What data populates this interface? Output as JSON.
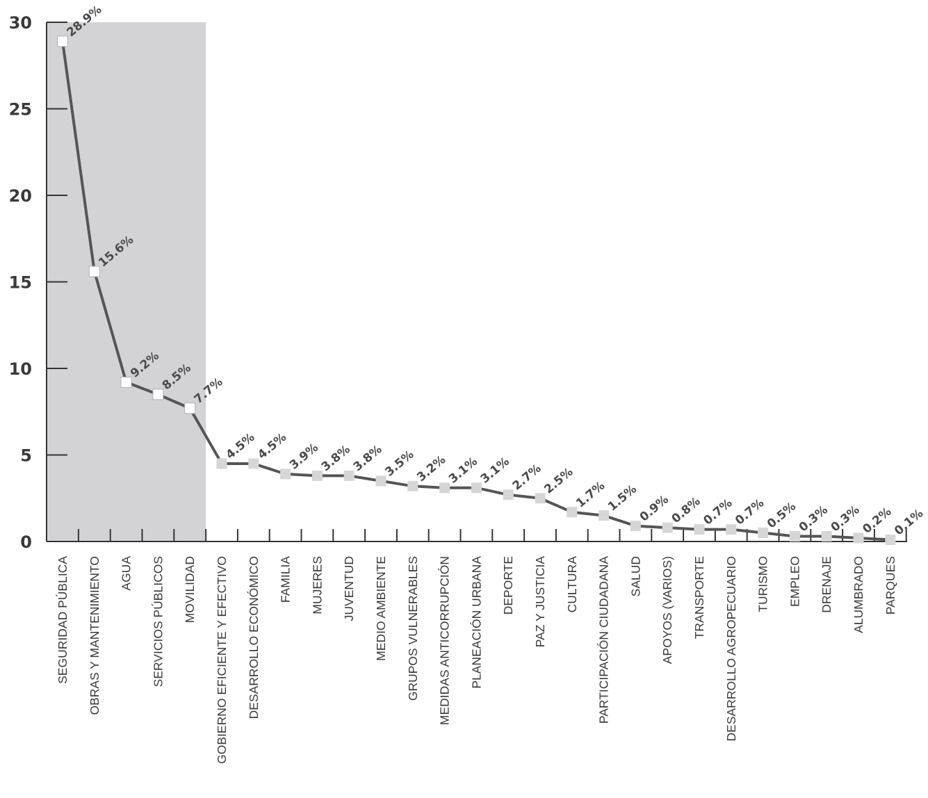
{
  "chart_data": {
    "type": "line",
    "title": "",
    "xlabel": "",
    "ylabel": "",
    "ylim": [
      0,
      30
    ],
    "yticks": [
      "0",
      "5",
      "10",
      "15",
      "20",
      "25",
      "30"
    ],
    "grid": false,
    "legend": "none",
    "highlight_count": 5,
    "categories": [
      "SEGURIDAD PÚBLICA",
      "OBRAS Y MANTENIMIENTO",
      "AGUA",
      "SERVICIOS PÚBLICOS",
      "MOVILIDAD",
      "GOBIERNO EFICIENTE Y EFECTIVO",
      "DESARROLLO ECONÓMICO",
      "FAMILIA",
      "MUJERES",
      "JUVENTUD",
      "MEDIO AMBIENTE",
      "GRUPOS VULNERABLES",
      "MEDIDAS ANTICORRUPCIÓN",
      "PLANEACIÓN URBANA",
      "DEPORTE",
      "PAZ Y JUSTICIA",
      "CULTURA",
      "PARTICIPACIÓN CIUDADANA",
      "SALUD",
      "APOYOS (VARIOS)",
      "TRANSPORTE",
      "DESARROLLO AGROPECUARIO",
      "TURISMO",
      "EMPLEO",
      "DRENAJE",
      "ALUMBRADO",
      "PARQUES"
    ],
    "values": [
      28.9,
      15.6,
      9.2,
      8.5,
      7.7,
      4.5,
      4.5,
      3.9,
      3.8,
      3.8,
      3.5,
      3.2,
      3.1,
      3.1,
      2.7,
      2.5,
      1.7,
      1.5,
      0.9,
      0.8,
      0.7,
      0.7,
      0.5,
      0.3,
      0.3,
      0.2,
      0.1
    ],
    "data_labels": [
      "28.9%",
      "15.6%",
      "9.2%",
      "8.5%",
      "7.7%",
      "4.5%",
      "4.5%",
      "3.9%",
      "3.8%",
      "3.8%",
      "3.5%",
      "3.2%",
      "3.1%",
      "3.1%",
      "2.7%",
      "2.5%",
      "1.7%",
      "1.5%",
      "0.9%",
      "0.8%",
      "0.7%",
      "0.7%",
      "0.5%",
      "0.3%",
      "0.3%",
      "0.2%",
      "0.1%"
    ],
    "colors": {
      "line": "#555555",
      "highlight_band": "#d3d3d5",
      "marker_highlight": "#ffffff",
      "marker_normal": "#d6d6d6",
      "axis": "#333333"
    }
  }
}
